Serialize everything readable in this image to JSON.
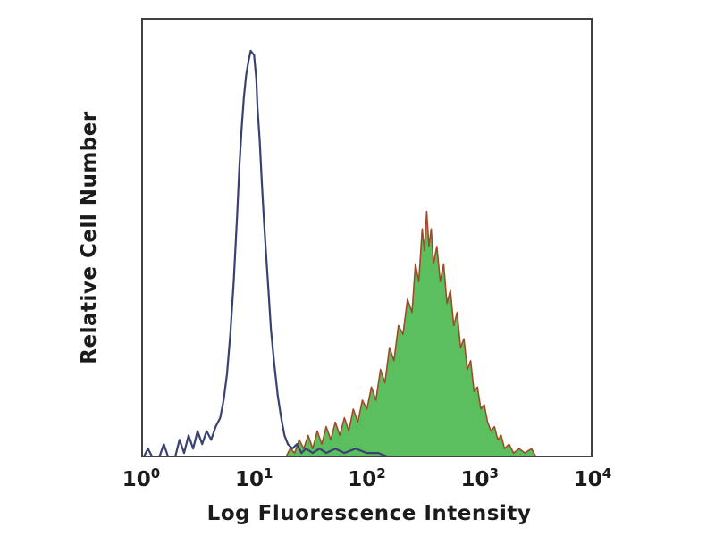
{
  "figure": {
    "xlabel": "Log Fluorescence Intensity",
    "ylabel": "Relative Cell Number"
  },
  "colors": {
    "background": "#ffffff",
    "frame": "#3f4147",
    "text": "#1b1b1b",
    "control_line": "#3a4173",
    "stained_fill": "#5cbf5e",
    "stained_outline": "#a04a28"
  },
  "chart_data": {
    "type": "area",
    "subtype": "flow-cytometry-overlay-histogram",
    "title": "",
    "xlabel": "Log Fluorescence Intensity",
    "ylabel": "Relative Cell Number",
    "x_scale": "log10",
    "x_range_log": [
      0,
      4
    ],
    "y_range_rel": [
      0,
      1
    ],
    "grid": false,
    "legend_position": "none",
    "x_ticks": [
      {
        "base": "10",
        "exp": "0",
        "log_x": 0
      },
      {
        "base": "10",
        "exp": "1",
        "log_x": 1
      },
      {
        "base": "10",
        "exp": "2",
        "log_x": 2
      },
      {
        "base": "10",
        "exp": "3",
        "log_x": 3
      },
      {
        "base": "10",
        "exp": "4",
        "log_x": 4
      }
    ],
    "peaks_summary": [
      {
        "series": "negative-control",
        "mode_x": 10,
        "mode_log_x": 1.0,
        "rel_height": 0.93
      },
      {
        "series": "stained-sample",
        "mode_x": 320,
        "mode_log_x": 2.5,
        "rel_height": 0.56
      }
    ],
    "series": [
      {
        "name": "stained-sample",
        "style": "filled-jagged",
        "fill_color_key": "stained_fill",
        "line_color_key": "stained_outline",
        "line_width": 1.6,
        "points_logx_yrel": [
          [
            1.28,
            0
          ],
          [
            1.32,
            0.02
          ],
          [
            1.36,
            0.01
          ],
          [
            1.4,
            0.04
          ],
          [
            1.44,
            0.02
          ],
          [
            1.48,
            0.05
          ],
          [
            1.52,
            0.02
          ],
          [
            1.56,
            0.06
          ],
          [
            1.6,
            0.03
          ],
          [
            1.64,
            0.07
          ],
          [
            1.68,
            0.04
          ],
          [
            1.72,
            0.08
          ],
          [
            1.76,
            0.05
          ],
          [
            1.8,
            0.09
          ],
          [
            1.84,
            0.06
          ],
          [
            1.88,
            0.11
          ],
          [
            1.92,
            0.08
          ],
          [
            1.96,
            0.13
          ],
          [
            2.0,
            0.11
          ],
          [
            2.04,
            0.16
          ],
          [
            2.08,
            0.13
          ],
          [
            2.12,
            0.2
          ],
          [
            2.16,
            0.17
          ],
          [
            2.2,
            0.25
          ],
          [
            2.24,
            0.22
          ],
          [
            2.28,
            0.3
          ],
          [
            2.32,
            0.28
          ],
          [
            2.36,
            0.36
          ],
          [
            2.4,
            0.33
          ],
          [
            2.43,
            0.44
          ],
          [
            2.46,
            0.4
          ],
          [
            2.49,
            0.52
          ],
          [
            2.51,
            0.47
          ],
          [
            2.53,
            0.56
          ],
          [
            2.55,
            0.48
          ],
          [
            2.57,
            0.52
          ],
          [
            2.59,
            0.44
          ],
          [
            2.62,
            0.48
          ],
          [
            2.65,
            0.4
          ],
          [
            2.68,
            0.44
          ],
          [
            2.71,
            0.35
          ],
          [
            2.74,
            0.38
          ],
          [
            2.77,
            0.3
          ],
          [
            2.8,
            0.33
          ],
          [
            2.83,
            0.25
          ],
          [
            2.86,
            0.27
          ],
          [
            2.89,
            0.2
          ],
          [
            2.92,
            0.22
          ],
          [
            2.95,
            0.15
          ],
          [
            2.98,
            0.16
          ],
          [
            3.01,
            0.11
          ],
          [
            3.04,
            0.12
          ],
          [
            3.07,
            0.08
          ],
          [
            3.1,
            0.06
          ],
          [
            3.13,
            0.07
          ],
          [
            3.16,
            0.04
          ],
          [
            3.19,
            0.05
          ],
          [
            3.22,
            0.02
          ],
          [
            3.26,
            0.03
          ],
          [
            3.3,
            0.01
          ],
          [
            3.35,
            0.02
          ],
          [
            3.4,
            0.01
          ],
          [
            3.46,
            0.02
          ],
          [
            3.5,
            0
          ]
        ]
      },
      {
        "name": "negative-control",
        "style": "open-line",
        "fill_color_key": null,
        "line_color_key": "control_line",
        "line_width": 2.2,
        "points_logx_yrel": [
          [
            0.02,
            0
          ],
          [
            0.06,
            0.02
          ],
          [
            0.1,
            0
          ],
          [
            0.16,
            0
          ],
          [
            0.2,
            0.03
          ],
          [
            0.24,
            0
          ],
          [
            0.3,
            0
          ],
          [
            0.34,
            0.04
          ],
          [
            0.38,
            0.01
          ],
          [
            0.42,
            0.05
          ],
          [
            0.46,
            0.02
          ],
          [
            0.5,
            0.06
          ],
          [
            0.54,
            0.03
          ],
          [
            0.58,
            0.06
          ],
          [
            0.62,
            0.04
          ],
          [
            0.66,
            0.07
          ],
          [
            0.7,
            0.09
          ],
          [
            0.73,
            0.13
          ],
          [
            0.76,
            0.19
          ],
          [
            0.79,
            0.28
          ],
          [
            0.82,
            0.4
          ],
          [
            0.85,
            0.55
          ],
          [
            0.87,
            0.66
          ],
          [
            0.89,
            0.75
          ],
          [
            0.91,
            0.82
          ],
          [
            0.93,
            0.87
          ],
          [
            0.95,
            0.9
          ],
          [
            0.97,
            0.925
          ],
          [
            1.0,
            0.915
          ],
          [
            1.02,
            0.86
          ],
          [
            1.03,
            0.8
          ],
          [
            1.05,
            0.72
          ],
          [
            1.07,
            0.62
          ],
          [
            1.09,
            0.53
          ],
          [
            1.11,
            0.45
          ],
          [
            1.13,
            0.37
          ],
          [
            1.15,
            0.29
          ],
          [
            1.18,
            0.21
          ],
          [
            1.21,
            0.14
          ],
          [
            1.24,
            0.09
          ],
          [
            1.27,
            0.05
          ],
          [
            1.3,
            0.03
          ],
          [
            1.34,
            0.02
          ],
          [
            1.38,
            0.03
          ],
          [
            1.42,
            0.01
          ],
          [
            1.46,
            0.02
          ],
          [
            1.52,
            0.01
          ],
          [
            1.58,
            0.02
          ],
          [
            1.64,
            0.01
          ],
          [
            1.72,
            0.02
          ],
          [
            1.8,
            0.01
          ],
          [
            1.9,
            0.02
          ],
          [
            2.0,
            0.01
          ],
          [
            2.1,
            0.01
          ],
          [
            2.2,
            0
          ]
        ]
      }
    ]
  }
}
